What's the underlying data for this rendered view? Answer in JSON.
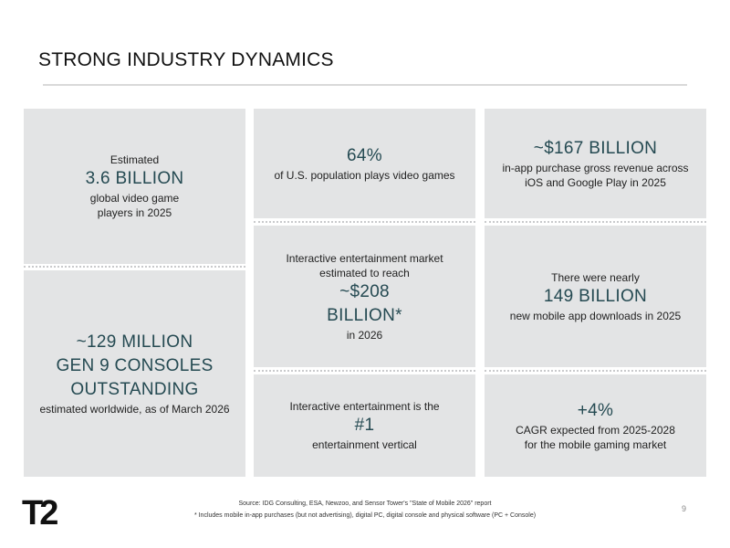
{
  "slide": {
    "title": "STRONG INDUSTRY DYNAMICS",
    "page_number": "9",
    "logo_text": "T2"
  },
  "cards": {
    "players": {
      "pre": "Estimated",
      "value": "3.6 BILLION",
      "line1": "global video game",
      "line2": "players in 2025"
    },
    "us_pop": {
      "value": "64%",
      "line1": "of U.S. population plays video games"
    },
    "iap": {
      "value": "~$167 BILLION",
      "line1": "in-app purchase gross revenue across",
      "line2": "iOS and Google Play in 2025"
    },
    "consoles": {
      "value1": "~129 MILLION",
      "value2": "GEN 9 CONSOLES",
      "value3": "OUTSTANDING",
      "line1": "estimated worldwide, as of March 2026"
    },
    "market": {
      "pre1": "Interactive entertainment market",
      "pre2": "estimated to reach",
      "value1": "~$208",
      "value2": "BILLION*",
      "line1": "in 2026"
    },
    "downloads": {
      "pre": "There were nearly",
      "value": "149 BILLION",
      "line1": "new mobile app downloads in 2025"
    },
    "vertical": {
      "pre": "Interactive entertainment is the",
      "value": "#1",
      "line1": "entertainment vertical"
    },
    "cagr": {
      "value": "+4%",
      "line1": "CAGR expected from 2025-2028",
      "line2": "for the mobile gaming market"
    }
  },
  "footer": {
    "source": "Source:  IDG Consulting, ESA, Newzoo, and Sensor Tower's \"State of Mobile 2026\" report",
    "note": "*  Includes mobile in-app purchases (but not advertising), digital PC, digital console and physical software (PC + Console)"
  },
  "colors": {
    "accent": "#254a52",
    "card_bg": "#e3e4e5"
  }
}
